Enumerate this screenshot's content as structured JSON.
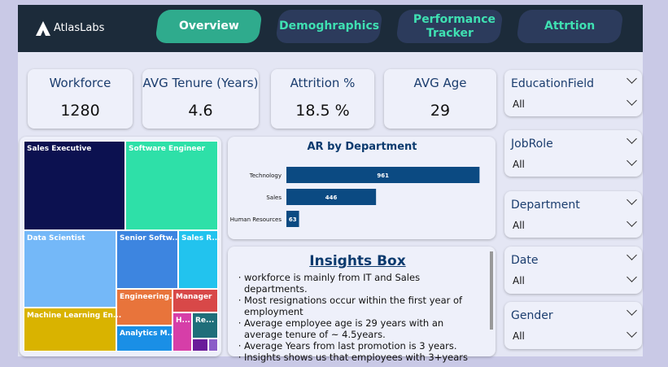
{
  "header": {
    "logo": "AtlasLabs",
    "tabs": [
      "Overview",
      "Demoghraphics",
      "Performance Tracker",
      "Attrtion"
    ]
  },
  "kpis": [
    {
      "label": "Workforce",
      "value": 1280
    },
    {
      "label": "AVG Tenure (Years)",
      "value": 4.6
    },
    {
      "label": "Attrition %",
      "value": "18.5 %"
    },
    {
      "label": "AVG Age",
      "value": 29
    }
  ],
  "treemap": {
    "tiles": [
      {
        "label": "Sales Executive"
      },
      {
        "label": "Software Engineer"
      },
      {
        "label": "Data Scientist"
      },
      {
        "label": "Senior Softw..."
      },
      {
        "label": "Sales R..."
      },
      {
        "label": "Engineering..."
      },
      {
        "label": "Manager"
      },
      {
        "label": "Machine Learning En..."
      },
      {
        "label": "Analytics M..."
      },
      {
        "label": "H..."
      },
      {
        "label": "Re..."
      }
    ]
  },
  "chart_data": {
    "type": "bar",
    "orientation": "horizontal",
    "title": "AR by Department",
    "categories": [
      "Technology",
      "Sales",
      "Human Resources"
    ],
    "values": [
      961,
      446,
      63
    ],
    "color": "#0b4a82",
    "xlim": [
      0,
      1000
    ]
  },
  "insights": {
    "title": "Insights Box",
    "items": [
      "workforce is mainly from IT and Sales departments.",
      "Most resignations occur within the first year of employment",
      "Average employee age is 29 years with an average tenure of ~ 4.5years.",
      "Average Years from last promotion is 3 years.",
      "Insights shows us that employees with 3+years"
    ]
  },
  "filters": [
    {
      "label": "EducationField",
      "value": "All"
    },
    {
      "label": "JobRole",
      "value": "All"
    },
    {
      "label": "Department",
      "value": "All"
    },
    {
      "label": "Date",
      "value": "All"
    },
    {
      "label": "Gender",
      "value": "All"
    }
  ]
}
